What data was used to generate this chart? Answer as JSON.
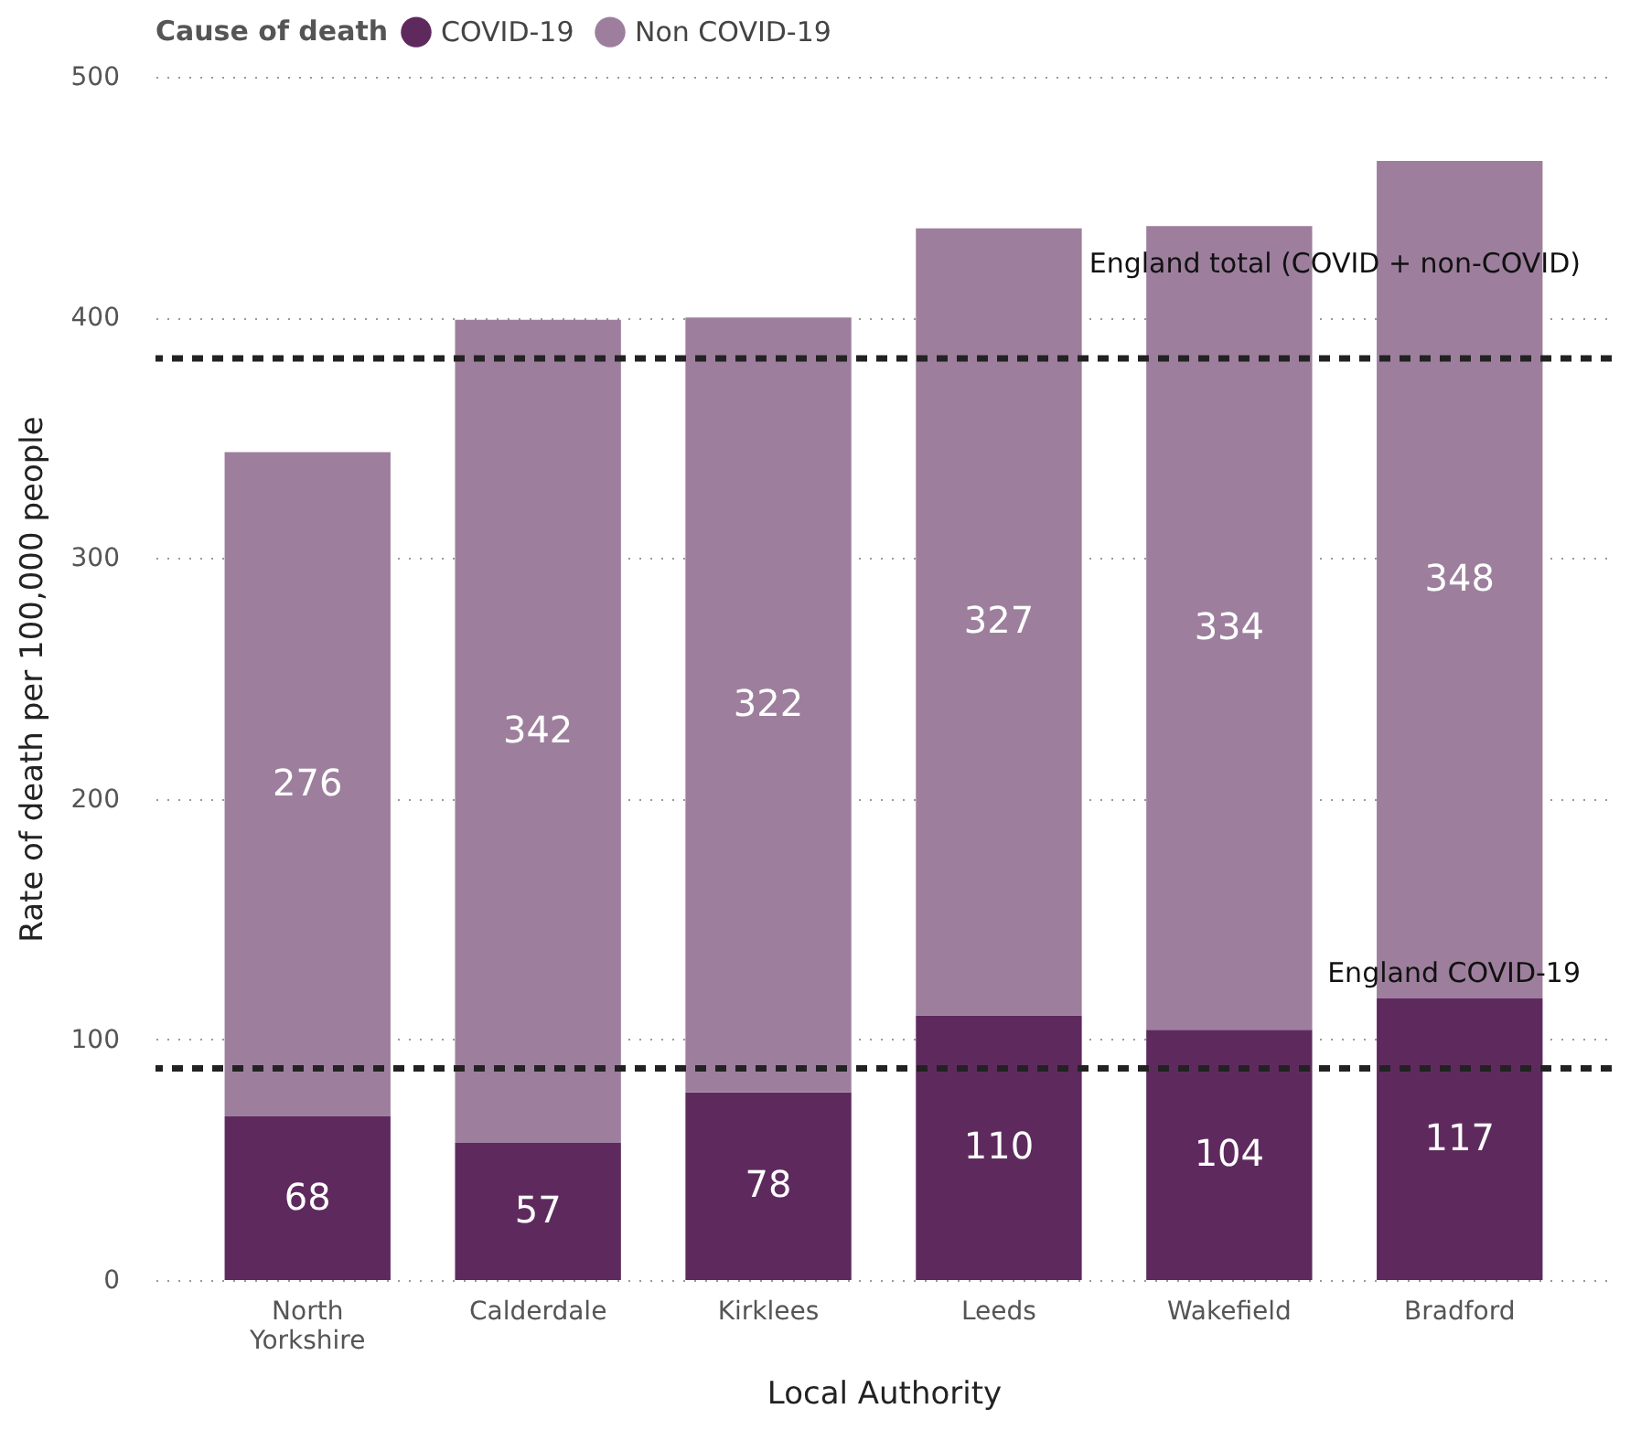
{
  "chart_data": {
    "type": "bar",
    "stacked": true,
    "xlabel": "Local Authority",
    "ylabel": "Rate of death per 100,000 people",
    "legend_title": "Cause of death",
    "legend": "top",
    "categories": [
      "North Yorkshire",
      "Calderdale",
      "Kirklees",
      "Leeds",
      "Wakefield",
      "Bradford"
    ],
    "series": [
      {
        "name": "COVID-19",
        "color": "#5e2a5e",
        "values": [
          68,
          57,
          78,
          110,
          104,
          117
        ]
      },
      {
        "name": "Non COVID-19",
        "color": "#9d7f9d",
        "values": [
          276,
          342,
          322,
          327,
          334,
          348
        ]
      }
    ],
    "data_labels": true,
    "ylim": [
      0,
      500
    ],
    "yticks": [
      0,
      100,
      200,
      300,
      400,
      500
    ],
    "grid": "y",
    "ref_lines": [
      {
        "axis": "y",
        "value": 383,
        "label": "England total (COVID + non-COVID)",
        "color": "#222222",
        "line_style": "dashed"
      },
      {
        "axis": "y",
        "value": 88,
        "label": "England COVID-19",
        "color": "#222222",
        "line_style": "dashed"
      }
    ]
  }
}
